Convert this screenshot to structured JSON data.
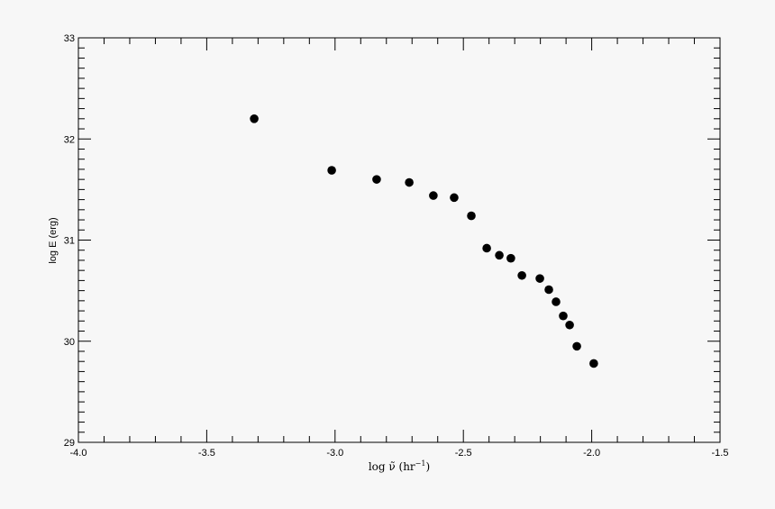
{
  "chart_data": {
    "type": "scatter",
    "title": "",
    "xlabel": "log ν̃ (hr⁻¹)",
    "xlabel_parts": {
      "main": "log ν̃ (hr",
      "sup": "−1",
      "close": ")"
    },
    "ylabel": "log E (erg)",
    "xlim": [
      -4.0,
      -1.5
    ],
    "ylim": [
      29,
      33
    ],
    "xticks": [
      -4.0,
      -3.5,
      -3.0,
      -2.5,
      -2.0,
      -1.5
    ],
    "xtick_labels": [
      "-4.0",
      "-3.5",
      "-3.0",
      "-2.5",
      "-2.0",
      "-1.5"
    ],
    "yticks": [
      29,
      30,
      31,
      32,
      33
    ],
    "ytick_labels": [
      "29",
      "30",
      "31",
      "32",
      "33"
    ],
    "grid": false,
    "marker_color": "#000000",
    "points": [
      {
        "x": -3.315,
        "y": 32.2
      },
      {
        "x": -3.013,
        "y": 31.69
      },
      {
        "x": -2.838,
        "y": 31.6
      },
      {
        "x": -2.711,
        "y": 31.57
      },
      {
        "x": -2.617,
        "y": 31.44
      },
      {
        "x": -2.536,
        "y": 31.42
      },
      {
        "x": -2.469,
        "y": 31.24
      },
      {
        "x": -2.409,
        "y": 30.92
      },
      {
        "x": -2.36,
        "y": 30.85
      },
      {
        "x": -2.315,
        "y": 30.82
      },
      {
        "x": -2.272,
        "y": 30.65
      },
      {
        "x": -2.202,
        "y": 30.62
      },
      {
        "x": -2.167,
        "y": 30.51
      },
      {
        "x": -2.139,
        "y": 30.39
      },
      {
        "x": -2.111,
        "y": 30.25
      },
      {
        "x": -2.086,
        "y": 30.16
      },
      {
        "x": -2.058,
        "y": 29.95
      },
      {
        "x": -1.992,
        "y": 29.78
      }
    ]
  }
}
